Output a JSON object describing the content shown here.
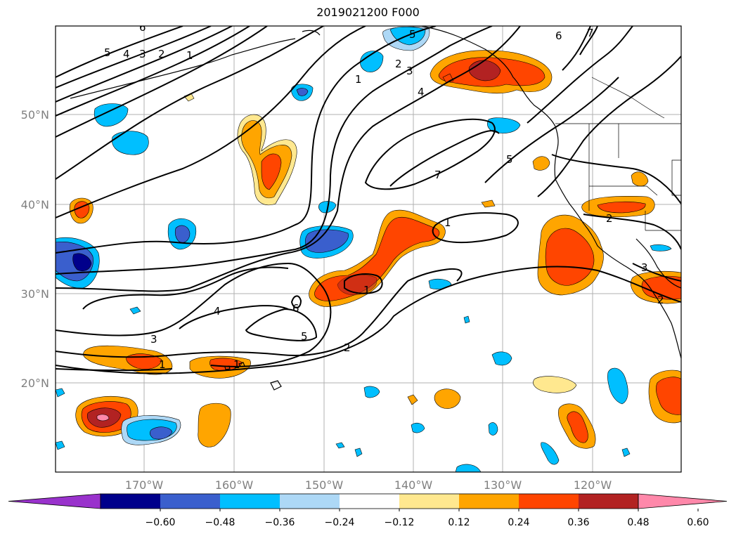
{
  "title": "2019021200 F000",
  "lat_labels": [
    "50°N",
    "40°N",
    "30°N",
    "20°N"
  ],
  "lon_labels": [
    "170°W",
    "160°W",
    "150°W",
    "140°W",
    "130°W",
    "120°W"
  ],
  "colorbar": {
    "ticks": [
      "-0.60",
      "-0.48",
      "-0.36",
      "-0.24",
      "-0.12",
      "0.12",
      "0.24",
      "0.36",
      "0.48",
      "0.60"
    ],
    "colors": [
      "#9932cc",
      "#00008b",
      "#3a5fcd",
      "#00bfff",
      "#add8f6",
      "#ffffff",
      "#ffe88f",
      "#ffa500",
      "#ff4500",
      "#b22222",
      "#ff88aa"
    ]
  },
  "contour_labels": [
    "6",
    "5",
    "4",
    "3",
    "2",
    "1",
    "1",
    "2",
    "3",
    "4",
    "5",
    "6",
    "7",
    "7",
    "5",
    "6",
    "5",
    "4",
    "3",
    "1",
    "1",
    "2",
    "3",
    "2",
    "1",
    "1",
    "2"
  ]
}
